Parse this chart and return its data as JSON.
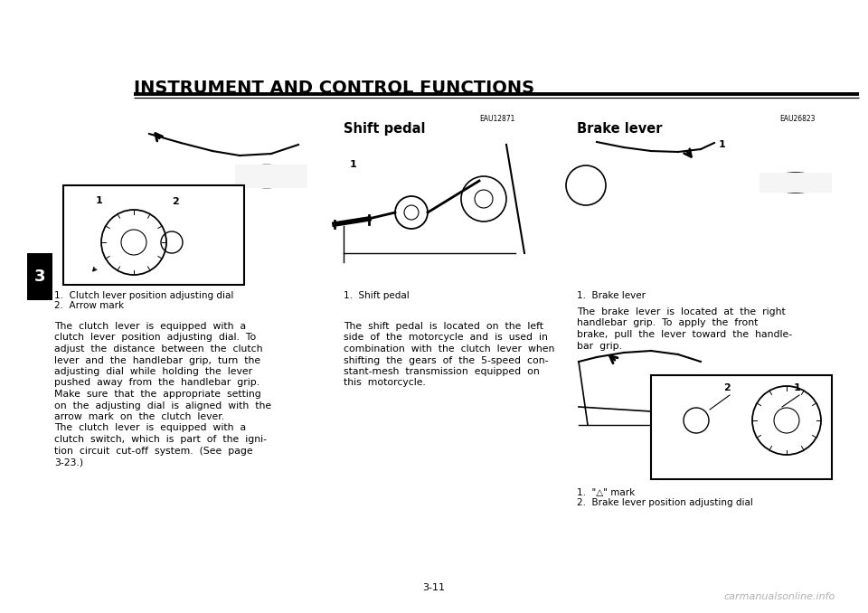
{
  "bg_color": "#ffffff",
  "page_width": 9.6,
  "page_height": 6.78,
  "title": "INSTRUMENT AND CONTROL FUNCTIONS",
  "title_fontsize": 14,
  "section_num": "3",
  "page_num": "3-11",
  "watermark": "carmanualsonline.info",
  "shift_pedal_label": "Shift pedal",
  "brake_lever_label": "Brake lever",
  "eau_shift": "EAU12871",
  "eau_brake": "EAU26823",
  "cap1_1": "1.  Clutch lever position adjusting dial",
  "cap1_2": "2.  Arrow mark",
  "cap2_1": "1.  Shift pedal",
  "cap3_1": "1.  Brake lever",
  "cap3_2_1": "1.  \"△\" mark",
  "cap3_2_2": "2.  Brake lever position adjusting dial",
  "text_col1_lines": [
    "The  clutch  lever  is  equipped  with  a",
    "clutch  lever  position  adjusting  dial.  To",
    "adjust  the  distance  between  the  clutch",
    "lever  and  the  handlebar  grip,  turn  the",
    "adjusting  dial  while  holding  the  lever",
    "pushed  away  from  the  handlebar  grip.",
    "Make  sure  that  the  appropriate  setting",
    "on  the  adjusting  dial  is  aligned  with  the",
    "arrow  mark  on  the  clutch  lever.",
    "The  clutch  lever  is  equipped  with  a",
    "clutch  switch,  which  is  part  of  the  igni-",
    "tion  circuit  cut-off  system.  (See  page",
    "3-23.)"
  ],
  "text_col2_lines": [
    "The  shift  pedal  is  located  on  the  left",
    "side  of  the  motorcycle  and  is  used  in",
    "combination  with  the  clutch  lever  when",
    "shifting  the  gears  of  the  5-speed  con-",
    "stant-mesh  transmission  equipped  on",
    "this  motorcycle."
  ],
  "text_col3_lines": [
    "The  brake  lever  is  located  at  the  right",
    "handlebar  grip.  To  apply  the  front",
    "brake,  pull  the  lever  toward  the  handle-",
    "bar  grip."
  ],
  "body_fontsize": 7.8,
  "caption_fontsize": 7.5,
  "header_fontsize": 10.5,
  "eau_fontsize": 5.5
}
